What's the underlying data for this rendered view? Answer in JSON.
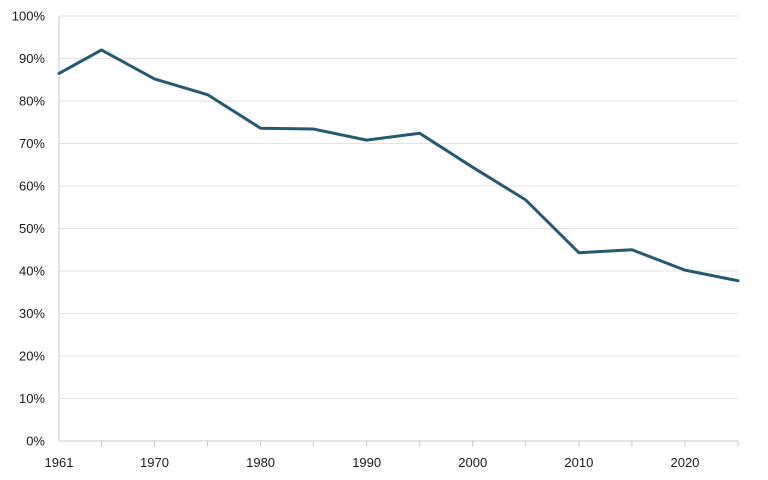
{
  "chart_data": {
    "type": "line",
    "title": "",
    "xlabel": "",
    "ylabel": "",
    "xlim": [
      1961,
      2025
    ],
    "ylim": [
      0,
      100
    ],
    "y_ticks": [
      0,
      10,
      20,
      30,
      40,
      50,
      60,
      70,
      80,
      90,
      100
    ],
    "y_tick_labels": [
      "0%",
      "10%",
      "20%",
      "30%",
      "40%",
      "50%",
      "60%",
      "70%",
      "80%",
      "90%",
      "100%"
    ],
    "x_tick_marks": [
      1965,
      1970,
      1975,
      1980,
      1985,
      1990,
      1995,
      2000,
      2005,
      2010,
      2015,
      2020,
      2025
    ],
    "x_labeled_ticks": [
      1961,
      1970,
      1980,
      1990,
      2000,
      2010,
      2020
    ],
    "x_tick_labels": [
      "1961",
      "1970",
      "1980",
      "1990",
      "2000",
      "2010",
      "2020"
    ],
    "grid": true,
    "legend": "none",
    "line_color": "#275a72",
    "series": [
      {
        "x": [
          1961,
          1965,
          1970,
          1975,
          1980,
          1985,
          1990,
          1995,
          2000,
          2005,
          2010,
          2015,
          2020,
          2025
        ],
        "values": [
          86.5,
          92.0,
          85.2,
          81.5,
          73.6,
          73.4,
          70.8,
          72.4,
          64.4,
          56.7,
          44.3,
          45.0,
          40.2,
          37.7
        ]
      }
    ]
  }
}
